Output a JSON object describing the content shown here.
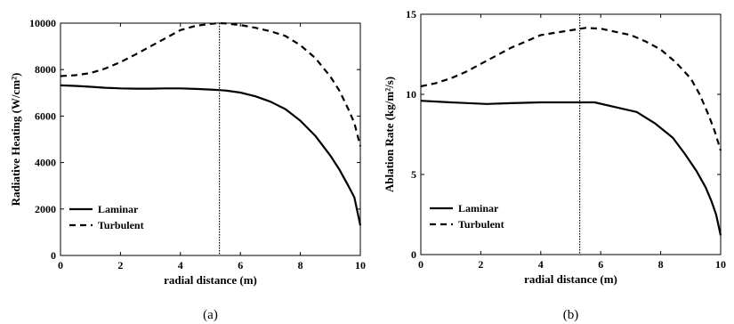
{
  "chart_data": [
    {
      "type": "line",
      "xlabel": "radial distance (m)",
      "ylabel": "Radiative Heating (W/cm²)",
      "xlim": [
        0,
        10
      ],
      "ylim": [
        0,
        10000
      ],
      "xticks": [
        "0",
        "2",
        "4",
        "6",
        "8",
        "10"
      ],
      "yticks": [
        "0",
        "2000",
        "4000",
        "6000",
        "8000",
        "10000"
      ],
      "grid": false,
      "legend_position": "bottom-left",
      "marker_x": 5.3,
      "caption": "(a)",
      "series": [
        {
          "name": "Laminar",
          "style": "solid",
          "x": [
            0,
            0.5,
            1,
            1.5,
            2,
            2.5,
            3,
            3.5,
            4,
            4.5,
            5,
            5.5,
            6,
            6.5,
            7,
            7.5,
            8,
            8.5,
            9,
            9.3,
            9.6,
            9.8,
            10
          ],
          "y": [
            7320,
            7300,
            7260,
            7220,
            7190,
            7180,
            7180,
            7190,
            7190,
            7170,
            7140,
            7100,
            7010,
            6850,
            6620,
            6300,
            5800,
            5150,
            4300,
            3700,
            3000,
            2500,
            1300
          ]
        },
        {
          "name": "Turbulent",
          "style": "dashed",
          "x": [
            0,
            0.5,
            1,
            1.5,
            2,
            2.5,
            3,
            3.5,
            4,
            4.5,
            5,
            5.3,
            5.5,
            6,
            6.5,
            7,
            7.5,
            8,
            8.5,
            9,
            9.3,
            9.6,
            9.8,
            10
          ],
          "y": [
            7720,
            7760,
            7850,
            8050,
            8320,
            8650,
            9000,
            9350,
            9700,
            9880,
            9970,
            10000,
            9990,
            9920,
            9800,
            9650,
            9450,
            9050,
            8500,
            7700,
            7100,
            6300,
            5700,
            4700
          ]
        }
      ]
    },
    {
      "type": "line",
      "xlabel": "radial distance (m)",
      "ylabel": "Ablation Rate (kg/m²/s)",
      "xlim": [
        0,
        10
      ],
      "ylim": [
        0,
        15
      ],
      "xticks": [
        "0",
        "2",
        "4",
        "6",
        "8",
        "10"
      ],
      "yticks": [
        "0",
        "5",
        "10",
        "15"
      ],
      "grid": false,
      "legend_position": "bottom-left",
      "marker_x": 5.3,
      "caption": "(b)",
      "series": [
        {
          "name": "Laminar",
          "style": "solid",
          "x": [
            0,
            1,
            2.2,
            3,
            4,
            5,
            5.8,
            6.5,
            7.2,
            7.8,
            8.4,
            8.8,
            9.2,
            9.5,
            9.7,
            9.85,
            10
          ],
          "y": [
            9.6,
            9.5,
            9.4,
            9.45,
            9.5,
            9.5,
            9.5,
            9.2,
            8.9,
            8.2,
            7.3,
            6.3,
            5.2,
            4.2,
            3.3,
            2.5,
            1.2
          ]
        },
        {
          "name": "Turbulent",
          "style": "dashed",
          "x": [
            0,
            0.5,
            1,
            1.5,
            2,
            2.5,
            3,
            3.5,
            4,
            4.5,
            5,
            5.5,
            6,
            6.5,
            7,
            7.5,
            8,
            8.5,
            9,
            9.3,
            9.6,
            9.8,
            10
          ],
          "y": [
            10.5,
            10.7,
            11.0,
            11.4,
            11.9,
            12.4,
            12.9,
            13.3,
            13.7,
            13.85,
            14.0,
            14.15,
            14.1,
            13.9,
            13.7,
            13.3,
            12.8,
            12.0,
            11.0,
            10.0,
            8.7,
            7.7,
            6.5
          ]
        }
      ]
    }
  ]
}
